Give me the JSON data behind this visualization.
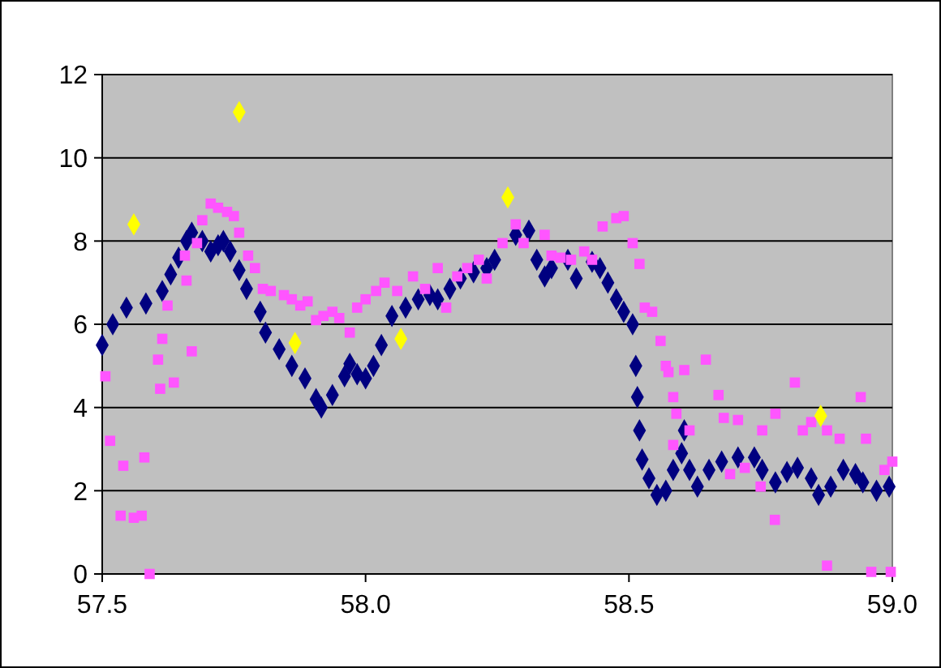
{
  "chart_data": {
    "type": "scatter",
    "xlim": [
      57.5,
      59.0
    ],
    "ylim": [
      0,
      12
    ],
    "xticks": [
      {
        "value": 57.5,
        "label": "57.5"
      },
      {
        "value": 58,
        "label": "58.0"
      },
      {
        "value": 58.5,
        "label": "58.5"
      },
      {
        "value": 59,
        "label": "59.0"
      }
    ],
    "yticks": [
      0,
      2,
      4,
      6,
      8,
      10,
      12
    ],
    "grid": "y",
    "series": [
      {
        "color": "#000080",
        "marker": "diamond",
        "x": [
          57.5,
          57.52,
          57.546,
          57.583,
          57.614,
          57.63,
          57.645,
          57.66,
          57.67,
          57.69,
          57.706,
          57.72,
          57.73,
          57.743,
          57.76,
          57.774,
          57.8,
          57.81,
          57.836,
          57.86,
          57.885,
          57.906,
          57.916,
          57.937,
          57.96,
          57.97,
          57.984,
          58.0,
          58.015,
          58.03,
          58.05,
          58.076,
          58.1,
          58.122,
          58.137,
          58.16,
          58.18,
          58.205,
          58.23,
          58.245,
          58.285,
          58.31,
          58.325,
          58.34,
          58.353,
          58.384,
          58.4,
          58.43,
          58.445,
          58.46,
          58.476,
          58.49,
          58.507,
          58.513,
          58.516,
          58.52,
          58.525,
          58.538,
          58.553,
          58.57,
          58.584,
          58.6,
          58.605,
          58.615,
          58.63,
          58.652,
          58.676,
          58.707,
          58.738,
          58.753,
          58.778,
          58.8,
          58.82,
          58.846,
          58.86,
          58.883,
          58.907,
          58.93,
          58.944,
          58.97,
          58.994
        ],
        "values": [
          5.5,
          6.0,
          6.4,
          6.5,
          6.8,
          7.2,
          7.6,
          8.0,
          8.2,
          8.0,
          7.75,
          7.9,
          8.0,
          7.75,
          7.3,
          6.85,
          6.3,
          5.8,
          5.4,
          5.0,
          4.7,
          4.2,
          4.0,
          4.3,
          4.75,
          5.05,
          4.8,
          4.7,
          5.0,
          5.5,
          6.2,
          6.4,
          6.6,
          6.7,
          6.6,
          6.85,
          7.1,
          7.25,
          7.35,
          7.55,
          8.15,
          8.25,
          7.55,
          7.15,
          7.35,
          7.55,
          7.1,
          7.5,
          7.35,
          7.0,
          6.6,
          6.3,
          6.0,
          5.0,
          4.25,
          3.45,
          2.75,
          2.3,
          1.9,
          2.0,
          2.5,
          2.9,
          3.45,
          2.5,
          2.1,
          2.5,
          2.7,
          2.8,
          2.8,
          2.5,
          2.2,
          2.45,
          2.55,
          2.3,
          1.9,
          2.1,
          2.5,
          2.4,
          2.2,
          2.0,
          2.1
        ]
      },
      {
        "color": "#ff55ff",
        "marker": "square",
        "x": [
          57.506,
          57.515,
          57.54,
          57.535,
          57.56,
          57.575,
          57.58,
          57.59,
          57.61,
          57.606,
          57.614,
          57.624,
          57.636,
          57.66,
          57.67,
          57.657,
          57.68,
          57.69,
          57.706,
          57.72,
          57.737,
          57.75,
          57.76,
          57.777,
          57.79,
          57.805,
          57.82,
          57.845,
          57.86,
          57.876,
          57.89,
          57.906,
          57.92,
          57.937,
          57.95,
          57.97,
          57.984,
          58.0,
          58.02,
          58.036,
          58.06,
          58.09,
          58.113,
          58.137,
          58.153,
          58.174,
          58.193,
          58.215,
          58.23,
          58.26,
          58.285,
          58.3,
          58.34,
          58.353,
          58.37,
          58.39,
          58.415,
          58.43,
          58.45,
          58.476,
          58.49,
          58.507,
          58.52,
          58.53,
          58.544,
          58.56,
          58.57,
          58.575,
          58.584,
          58.605,
          58.59,
          58.584,
          58.615,
          58.646,
          58.67,
          58.68,
          58.707,
          58.72,
          58.753,
          58.778,
          58.815,
          58.83,
          58.846,
          58.876,
          58.9,
          58.94,
          58.95,
          58.985,
          59.0,
          58.692,
          58.75,
          58.777,
          58.876,
          58.96,
          58.997
        ],
        "values": [
          4.75,
          3.2,
          2.6,
          1.4,
          1.35,
          1.4,
          2.8,
          0.0,
          4.45,
          5.15,
          5.65,
          6.45,
          4.6,
          7.05,
          5.35,
          7.65,
          7.95,
          8.5,
          8.9,
          8.8,
          8.7,
          8.6,
          8.2,
          7.65,
          7.35,
          6.85,
          6.8,
          6.7,
          6.6,
          6.45,
          6.55,
          6.1,
          6.2,
          6.3,
          6.15,
          5.8,
          6.4,
          6.6,
          6.8,
          7.0,
          6.8,
          7.15,
          6.85,
          7.35,
          6.4,
          7.15,
          7.35,
          7.55,
          7.1,
          7.95,
          8.4,
          7.95,
          8.15,
          7.65,
          7.6,
          7.55,
          7.75,
          7.55,
          8.35,
          8.55,
          8.6,
          7.95,
          7.45,
          6.4,
          6.3,
          5.6,
          5.0,
          4.85,
          4.25,
          4.9,
          3.85,
          3.1,
          3.45,
          5.15,
          4.3,
          3.75,
          3.7,
          2.55,
          3.45,
          3.85,
          4.6,
          3.45,
          3.65,
          3.45,
          3.25,
          4.25,
          3.25,
          2.5,
          2.7,
          2.4,
          2.1,
          1.3,
          0.2,
          0.05,
          0.05
        ]
      },
      {
        "color": "#ffff00",
        "marker": "diamond",
        "x": [
          57.56,
          57.76,
          57.866,
          58.067,
          58.27,
          58.864
        ],
        "values": [
          8.4,
          11.1,
          5.55,
          5.65,
          9.05,
          3.8
        ]
      }
    ]
  }
}
